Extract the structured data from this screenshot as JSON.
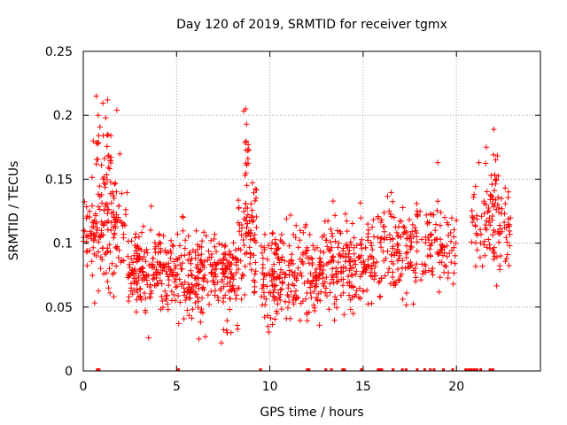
{
  "chart_data": {
    "type": "scatter",
    "title": "Day 120 of 2019, SRMTID for receiver tgmx",
    "xlabel": "GPS time / hours",
    "ylabel": "SRMTID / TECUs",
    "xlim": [
      0,
      24.5
    ],
    "ylim": [
      0,
      0.25
    ],
    "xticks": [
      0,
      5,
      10,
      15,
      20
    ],
    "xtick_labels": [
      "0",
      "5",
      "10",
      "15",
      "20"
    ],
    "yticks": [
      0,
      0.05,
      0.1,
      0.15,
      0.2,
      0.25
    ],
    "ytick_labels": [
      "0",
      "0.05",
      "0.1",
      "0.15",
      "0.2",
      "0.25"
    ],
    "grid": true,
    "marker": "+",
    "color": "#ff0000",
    "series": [
      {
        "name": "SRMTID",
        "segments": [
          {
            "x_start": 0.0,
            "x_end": 2.4,
            "base": 0.11,
            "spread": 0.035,
            "trend": 0.0,
            "count": 150
          },
          {
            "x_start": 0.5,
            "x_end": 1.5,
            "base": 0.165,
            "spread": 0.028,
            "trend": 0.0,
            "count": 32
          },
          {
            "x_start": 2.4,
            "x_end": 5.0,
            "base": 0.078,
            "spread": 0.026,
            "trend": 0.0,
            "count": 200
          },
          {
            "x_start": 5.0,
            "x_end": 8.3,
            "base": 0.075,
            "spread": 0.028,
            "trend": 0.0,
            "count": 240
          },
          {
            "x_start": 8.3,
            "x_end": 9.3,
            "base": 0.105,
            "spread": 0.038,
            "trend": 0.0,
            "count": 80
          },
          {
            "x_start": 8.6,
            "x_end": 8.9,
            "base": 0.165,
            "spread": 0.025,
            "trend": 0.0,
            "count": 14
          },
          {
            "x_start": 9.5,
            "x_end": 13.0,
            "base": 0.075,
            "spread": 0.028,
            "trend": 0.0,
            "count": 250
          },
          {
            "x_start": 13.0,
            "x_end": 15.5,
            "base": 0.085,
            "spread": 0.03,
            "trend": 0.0,
            "count": 170
          },
          {
            "x_start": 15.5,
            "x_end": 17.5,
            "base": 0.095,
            "spread": 0.03,
            "trend": 0.0,
            "count": 110
          },
          {
            "x_start": 17.5,
            "x_end": 20.0,
            "base": 0.1,
            "spread": 0.028,
            "trend": 0.0,
            "count": 120
          },
          {
            "x_start": 20.8,
            "x_end": 22.9,
            "base": 0.115,
            "spread": 0.03,
            "trend": 0.0,
            "count": 110
          },
          {
            "x_start": 21.8,
            "x_end": 22.3,
            "base": 0.155,
            "spread": 0.025,
            "trend": 0.0,
            "count": 12
          }
        ],
        "highlight_points": [
          {
            "x": 0.7,
            "y": 0.215
          },
          {
            "x": 1.3,
            "y": 0.212
          },
          {
            "x": 1.8,
            "y": 0.204
          },
          {
            "x": 0.8,
            "y": 0.2
          },
          {
            "x": 1.2,
            "y": 0.198
          },
          {
            "x": 8.7,
            "y": 0.205
          },
          {
            "x": 8.75,
            "y": 0.193
          },
          {
            "x": 22.0,
            "y": 0.189
          },
          {
            "x": 21.6,
            "y": 0.175
          },
          {
            "x": 21.2,
            "y": 0.163
          },
          {
            "x": 19.0,
            "y": 0.163
          },
          {
            "x": 3.5,
            "y": 0.026
          },
          {
            "x": 6.2,
            "y": 0.025
          },
          {
            "x": 7.4,
            "y": 0.022
          }
        ],
        "zero_ticks": [
          0.75,
          0.85,
          5.1,
          9.5,
          12.0,
          12.1,
          13.0,
          13.3,
          13.9,
          14.0,
          14.9,
          15.8,
          15.9,
          16.0,
          16.6,
          17.1,
          17.3,
          17.9,
          18.3,
          18.6,
          18.8,
          19.3,
          19.8,
          20.5,
          20.65,
          20.8,
          20.95,
          21.1,
          21.3,
          21.8,
          21.95
        ]
      }
    ]
  }
}
